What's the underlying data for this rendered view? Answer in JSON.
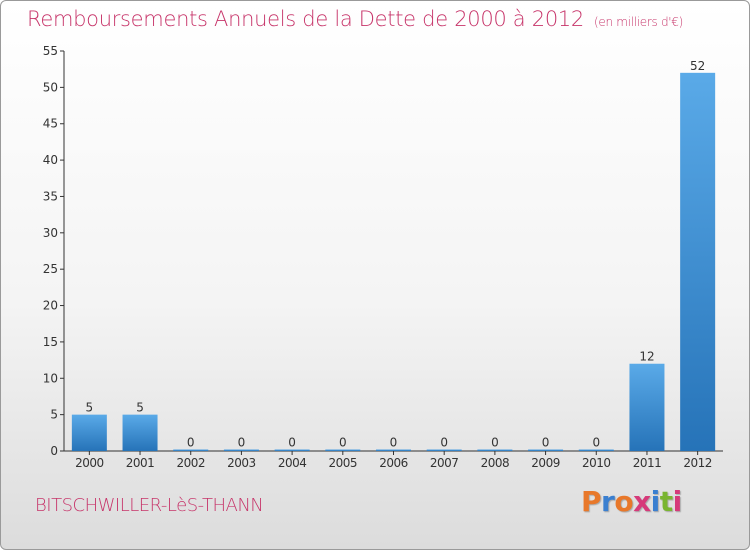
{
  "title": "Remboursements Annuels de la Dette de 2000 à 2012",
  "subtitle": "(en milliers d'€)",
  "place": "BITSCHWILLER-LèS-THANN",
  "logo": {
    "letters": [
      "P",
      "r",
      "o",
      "x",
      "i",
      "t",
      "i"
    ],
    "colors": [
      "#e8782a",
      "#3a7fd0",
      "#e8782a",
      "#d63a7a",
      "#3a7fd0",
      "#7ab530",
      "#d63a7a"
    ]
  },
  "colors": {
    "bar_top": "#5aaae8",
    "bar_bottom": "#2673b8",
    "accent": "#c7356a"
  },
  "chart_data": {
    "type": "bar",
    "categories": [
      "2000",
      "2001",
      "2002",
      "2003",
      "2004",
      "2005",
      "2006",
      "2007",
      "2008",
      "2009",
      "2010",
      "2011",
      "2012"
    ],
    "values": [
      5,
      5,
      0,
      0,
      0,
      0,
      0,
      0,
      0,
      0,
      0,
      12,
      52
    ],
    "ylim": [
      0,
      55
    ],
    "yticks": [
      0,
      5,
      10,
      15,
      20,
      25,
      30,
      35,
      40,
      45,
      50,
      55
    ],
    "grid": false
  }
}
